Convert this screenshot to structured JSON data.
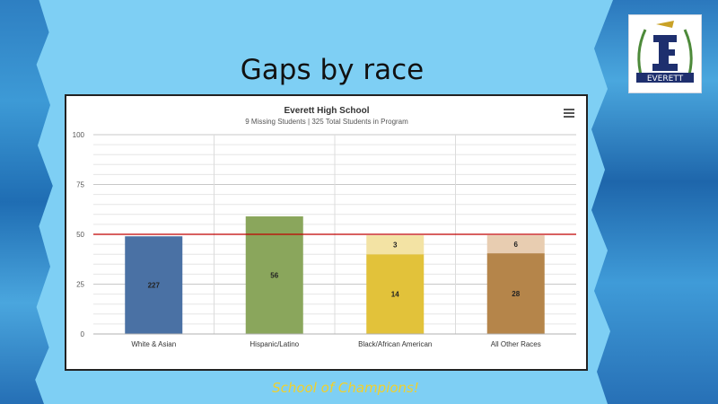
{
  "slide": {
    "title": "Gaps by race",
    "footer": "School of Champions!",
    "logo_text": "EVERETT"
  },
  "chart_data": {
    "type": "bar",
    "title": "Everett High School",
    "subtitle": "9 Missing Students | 325 Total Students in Program",
    "categories": [
      "White & Asian",
      "Hispanic/Latino",
      "Black/African American",
      "All Other Races"
    ],
    "series": [
      {
        "values": [
          49,
          59,
          40,
          40.5
        ],
        "labels": [
          "227",
          "56",
          "14",
          "28"
        ],
        "colors": [
          "#4a71a4",
          "#8aa65c",
          "#e2c23a",
          "#b5854a"
        ]
      },
      {
        "values": [
          0,
          0,
          9.5,
          9
        ],
        "labels": [
          "",
          "",
          "3",
          "6"
        ],
        "colors": [
          "#f3e3a4",
          "#f3e3a4",
          "#f3e3a4",
          "#e8cdb1"
        ]
      }
    ],
    "stacked": true,
    "reference_line": 50,
    "reference_color": "#c00000",
    "ylim": [
      0,
      100
    ],
    "yticks": [
      "0",
      "25",
      "50",
      "75",
      "100"
    ],
    "menu_icon": "hamburger-menu-icon",
    "grid": true
  }
}
